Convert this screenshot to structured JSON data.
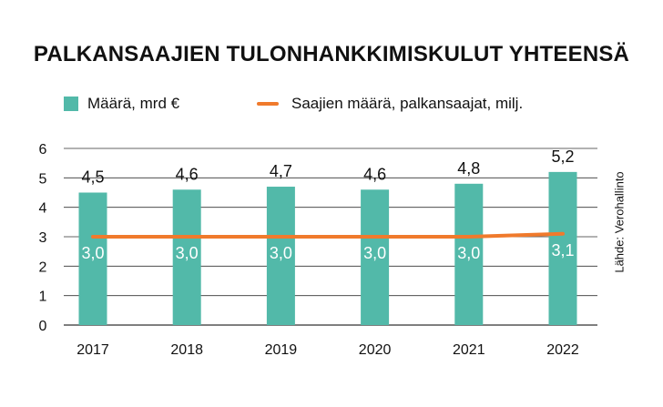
{
  "title": "PALKANSAAJIEN TULONHANKKIMISKULUT YHTEENSÄ",
  "source": "Lähde: Verohallinto",
  "colors": {
    "bar": "#52b9a9",
    "line": "#f07a2c",
    "grid": "#333333"
  },
  "chart_data": {
    "type": "bar",
    "categories": [
      "2017",
      "2018",
      "2019",
      "2020",
      "2021",
      "2022"
    ],
    "ylim": [
      0,
      6
    ],
    "yticks": [
      "0",
      "1",
      "2",
      "3",
      "4",
      "5",
      "6"
    ],
    "grid": true,
    "legend_position": "top-left",
    "series": [
      {
        "name": "Määrä, mrd €",
        "type": "bar",
        "values": [
          4.5,
          4.6,
          4.7,
          4.6,
          4.8,
          5.2
        ],
        "labels": [
          "4,5",
          "4,6",
          "4,7",
          "4,6",
          "4,8",
          "5,2"
        ]
      },
      {
        "name": "Saajien määrä, palkansaajat, milj.",
        "type": "line",
        "values": [
          3.0,
          3.0,
          3.0,
          3.0,
          3.0,
          3.1
        ],
        "labels": [
          "3,0",
          "3,0",
          "3,0",
          "3,0",
          "3,0",
          "3,1"
        ]
      }
    ]
  }
}
